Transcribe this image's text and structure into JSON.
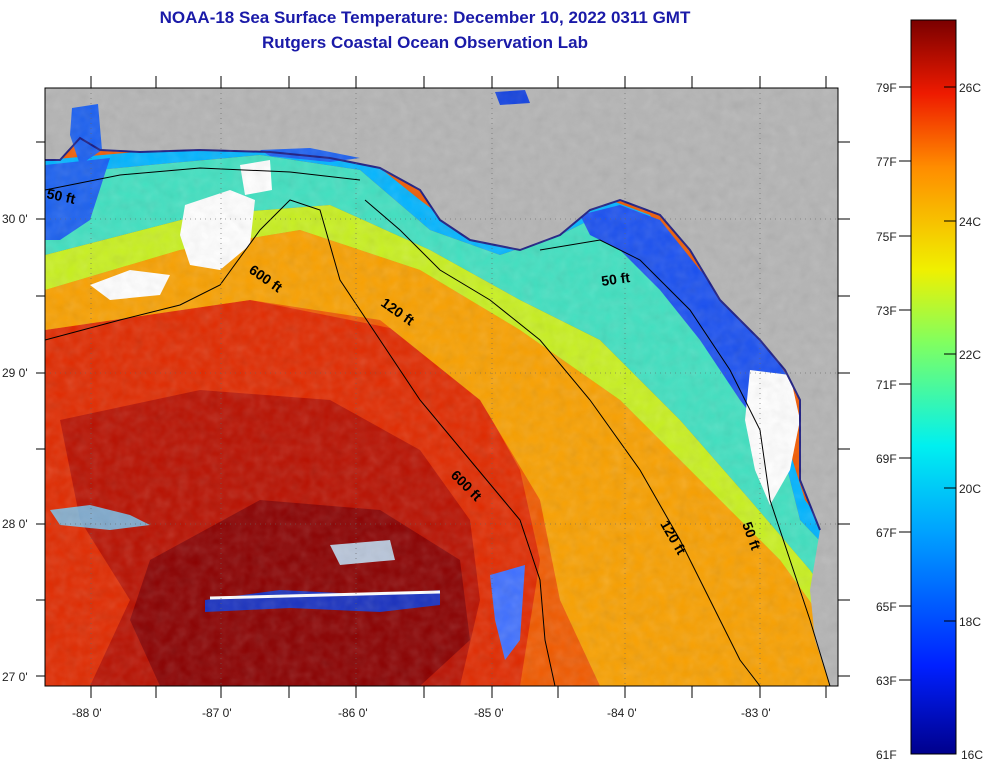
{
  "header": {
    "title": "NOAA-18 Sea Surface Temperature:  December 10, 2022 0311 GMT",
    "subtitle": "Rutgers Coastal Ocean Observation Lab"
  },
  "axes": {
    "lat_labels": [
      "30 0'",
      "29 0'",
      "28 0'",
      "27 0'"
    ],
    "lon_labels": [
      "-88 0'",
      "-87 0'",
      "-86 0'",
      "-85 0'",
      "-84 0'",
      "-83 0'"
    ]
  },
  "contours": {
    "labels": [
      "50 ft",
      "600 ft",
      "120 ft",
      "50 ft",
      "600 ft",
      "120 ft",
      "50 ft"
    ]
  },
  "colorbar": {
    "f_labels": [
      "79F",
      "77F",
      "75F",
      "73F",
      "71F",
      "69F",
      "67F",
      "65F",
      "63F",
      "61F"
    ],
    "c_labels": [
      "26C",
      "24C",
      "22C",
      "20C",
      "18C",
      "16C"
    ]
  },
  "colors": {
    "land": "#b4b4b4",
    "cloud": "#ffffff",
    "title": "#1a1aa8"
  }
}
